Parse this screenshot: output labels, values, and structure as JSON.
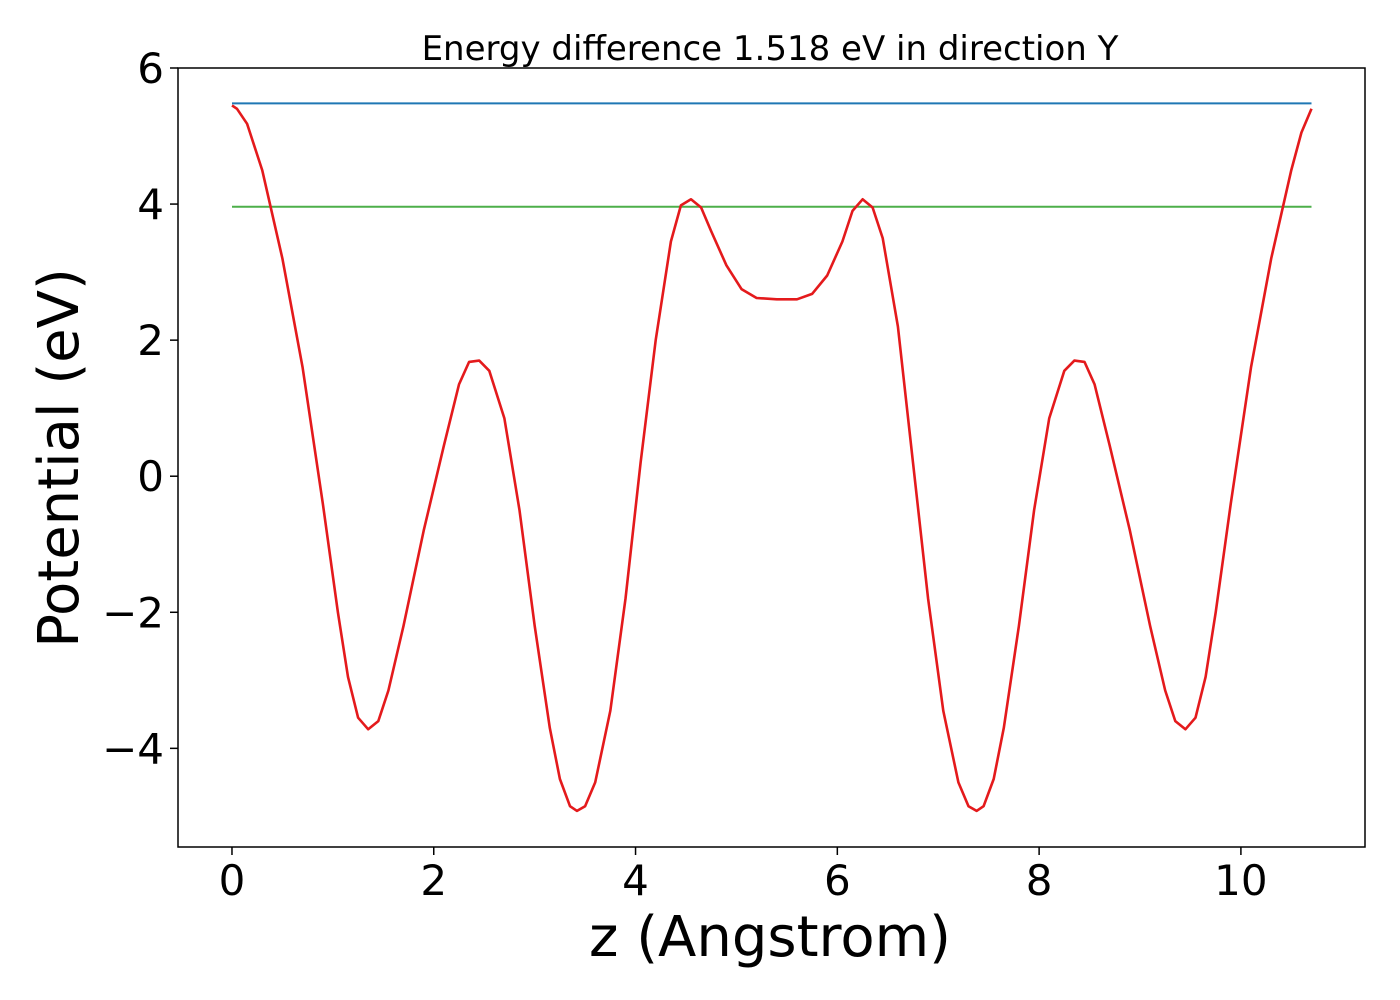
{
  "chart_data": {
    "type": "line",
    "title": "Energy difference 1.518 eV in direction Y",
    "xlabel": "z (Angstrom)",
    "ylabel": "Potential (eV)",
    "xlim": [
      -0.535,
      11.23
    ],
    "ylim": [
      -5.45,
      6.0
    ],
    "xticks": [
      0,
      2,
      4,
      6,
      8,
      10
    ],
    "xtick_labels": [
      "0",
      "2",
      "4",
      "6",
      "8",
      "10"
    ],
    "yticks": [
      -4,
      -2,
      0,
      2,
      4,
      6
    ],
    "ytick_labels": [
      "−4",
      "−2",
      "0",
      "2",
      "4",
      "6"
    ],
    "grid": false,
    "colors": {
      "potential": "#e41a1c",
      "upper_level": "#1f77b4",
      "lower_level": "#4daf4a"
    },
    "series": [
      {
        "values": [
          [
            0.0,
            5.45
          ],
          [
            0.05,
            5.4
          ],
          [
            0.15,
            5.18
          ],
          [
            0.3,
            4.5
          ],
          [
            0.5,
            3.2
          ],
          [
            0.7,
            1.6
          ],
          [
            0.9,
            -0.4
          ],
          [
            1.05,
            -2.0
          ],
          [
            1.15,
            -2.95
          ],
          [
            1.25,
            -3.55
          ],
          [
            1.35,
            -3.72
          ],
          [
            1.45,
            -3.6
          ],
          [
            1.55,
            -3.15
          ],
          [
            1.7,
            -2.2
          ],
          [
            1.9,
            -0.8
          ],
          [
            2.1,
            0.45
          ],
          [
            2.25,
            1.35
          ],
          [
            2.35,
            1.68
          ],
          [
            2.45,
            1.7
          ],
          [
            2.55,
            1.55
          ],
          [
            2.7,
            0.85
          ],
          [
            2.85,
            -0.5
          ],
          [
            3.0,
            -2.2
          ],
          [
            3.15,
            -3.7
          ],
          [
            3.25,
            -4.45
          ],
          [
            3.35,
            -4.85
          ],
          [
            3.42,
            -4.92
          ],
          [
            3.5,
            -4.85
          ],
          [
            3.6,
            -4.5
          ],
          [
            3.75,
            -3.45
          ],
          [
            3.9,
            -1.8
          ],
          [
            4.05,
            0.2
          ],
          [
            4.2,
            2.0
          ],
          [
            4.35,
            3.45
          ],
          [
            4.45,
            3.98
          ],
          [
            4.55,
            4.07
          ],
          [
            4.65,
            3.95
          ],
          [
            4.75,
            3.6
          ],
          [
            4.9,
            3.1
          ],
          [
            5.05,
            2.75
          ],
          [
            5.2,
            2.62
          ],
          [
            5.4,
            2.6
          ],
          [
            5.6,
            2.6
          ],
          [
            5.75,
            2.68
          ],
          [
            5.9,
            2.95
          ],
          [
            6.05,
            3.45
          ],
          [
            6.15,
            3.9
          ],
          [
            6.25,
            4.07
          ],
          [
            6.35,
            3.95
          ],
          [
            6.45,
            3.5
          ],
          [
            6.6,
            2.2
          ],
          [
            6.75,
            0.2
          ],
          [
            6.9,
            -1.8
          ],
          [
            7.05,
            -3.45
          ],
          [
            7.2,
            -4.5
          ],
          [
            7.3,
            -4.85
          ],
          [
            7.38,
            -4.92
          ],
          [
            7.45,
            -4.85
          ],
          [
            7.55,
            -4.45
          ],
          [
            7.65,
            -3.7
          ],
          [
            7.8,
            -2.2
          ],
          [
            7.95,
            -0.5
          ],
          [
            8.1,
            0.85
          ],
          [
            8.25,
            1.55
          ],
          [
            8.35,
            1.7
          ],
          [
            8.45,
            1.68
          ],
          [
            8.55,
            1.35
          ],
          [
            8.7,
            0.45
          ],
          [
            8.9,
            -0.8
          ],
          [
            9.1,
            -2.2
          ],
          [
            9.25,
            -3.15
          ],
          [
            9.35,
            -3.6
          ],
          [
            9.45,
            -3.72
          ],
          [
            9.55,
            -3.55
          ],
          [
            9.65,
            -2.95
          ],
          [
            9.75,
            -2.0
          ],
          [
            9.9,
            -0.4
          ],
          [
            10.1,
            1.6
          ],
          [
            10.3,
            3.2
          ],
          [
            10.5,
            4.5
          ],
          [
            10.6,
            5.05
          ],
          [
            10.7,
            5.4
          ]
        ]
      },
      {
        "values": [
          [
            0.0,
            5.48
          ],
          [
            10.7,
            5.48
          ]
        ]
      },
      {
        "values": [
          [
            0.0,
            3.96
          ],
          [
            10.7,
            3.96
          ]
        ]
      }
    ]
  }
}
